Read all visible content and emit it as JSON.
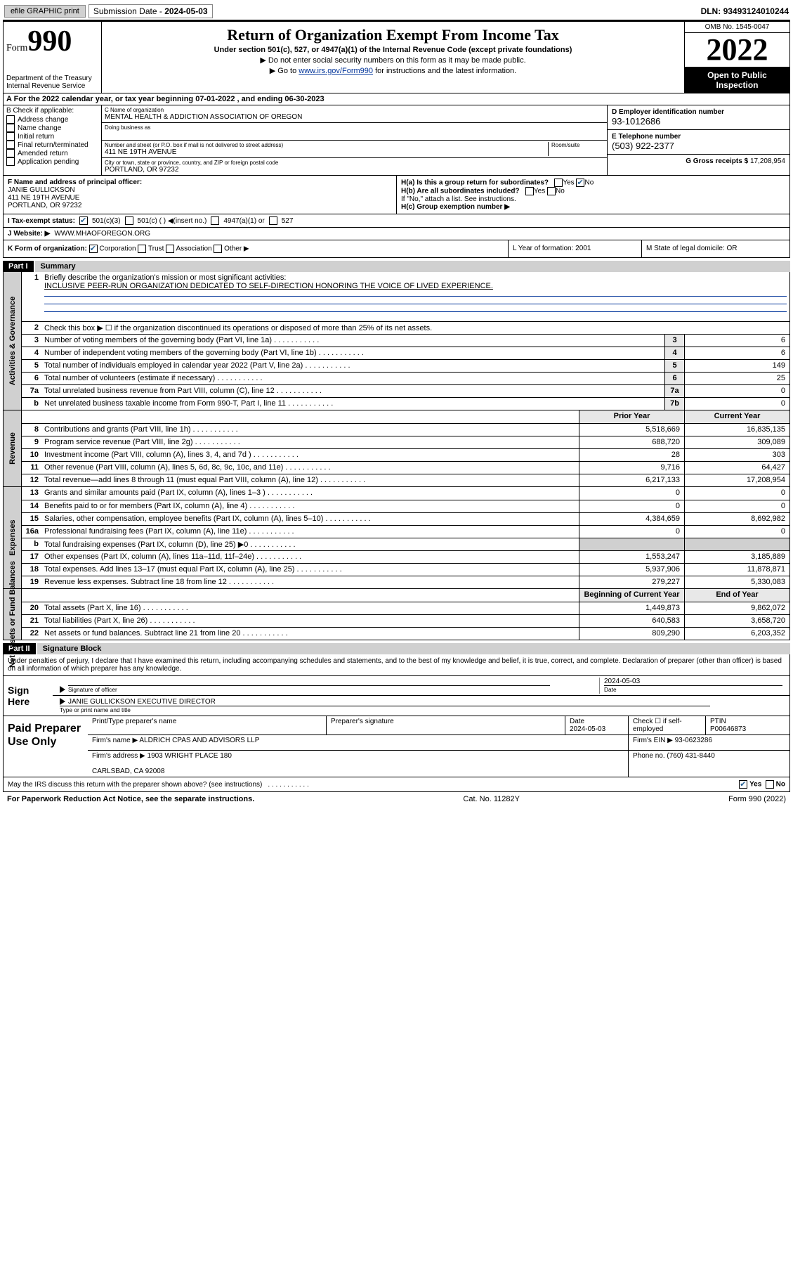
{
  "top": {
    "efile": "efile GRAPHIC print",
    "sub_lbl": "Submission Date - ",
    "sub_date": "2024-05-03",
    "dln_lbl": "DLN: ",
    "dln": "93493124010244"
  },
  "header": {
    "form_label": "Form",
    "form_num": "990",
    "title": "Return of Organization Exempt From Income Tax",
    "sub1": "Under section 501(c), 527, or 4947(a)(1) of the Internal Revenue Code (except private foundations)",
    "sub2": "▶ Do not enter social security numbers on this form as it may be made public.",
    "sub3_pre": "▶ Go to ",
    "sub3_link": "www.irs.gov/Form990",
    "sub3_post": " for instructions and the latest information.",
    "dept": "Department of the Treasury\nInternal Revenue Service",
    "omb": "OMB No. 1545-0047",
    "year": "2022",
    "inspect": "Open to Public Inspection"
  },
  "lineA": "A For the 2022 calendar year, or tax year beginning 07-01-2022    , and ending 06-30-2023",
  "colB": {
    "hdr": "B Check if applicable:",
    "opts": [
      "Address change",
      "Name change",
      "Initial return",
      "Final return/terminated",
      "Amended return",
      "Application pending"
    ]
  },
  "colC": {
    "name_lbl": "C Name of organization",
    "name": "MENTAL HEALTH & ADDICTION ASSOCIATION OF OREGON",
    "dba_lbl": "Doing business as",
    "addr_lbl": "Number and street (or P.O. box if mail is not delivered to street address)",
    "room_lbl": "Room/suite",
    "addr": "411 NE 19TH AVENUE",
    "city_lbl": "City or town, state or province, country, and ZIP or foreign postal code",
    "city": "PORTLAND, OR  97232"
  },
  "colD": {
    "ein_lbl": "D Employer identification number",
    "ein": "93-1012686",
    "tel_lbl": "E Telephone number",
    "tel": "(503) 922-2377",
    "gross_lbl": "G Gross receipts $ ",
    "gross": "17,208,954"
  },
  "rowF": {
    "lbl": "F Name and address of principal officer:",
    "name": "JANIE GULLICKSON",
    "addr1": "411 NE 19TH AVENUE",
    "addr2": "PORTLAND, OR  97232"
  },
  "rowH": {
    "a": "H(a)  Is this a group return for subordinates?",
    "b": "H(b)  Are all subordinates included?",
    "b2": "If \"No,\" attach a list. See instructions.",
    "c": "H(c)  Group exemption number ▶",
    "yes": "Yes",
    "no": "No"
  },
  "rowI": {
    "lbl": "I   Tax-exempt status:",
    "o1": "501(c)(3)",
    "o2": "501(c) (  ) ◀(insert no.)",
    "o3": "4947(a)(1) or",
    "o4": "527"
  },
  "rowJ": {
    "lbl": "J   Website: ▶",
    "val": "WWW.MHAOFOREGON.ORG"
  },
  "rowK": {
    "lbl": "K Form of organization:",
    "o1": "Corporation",
    "o2": "Trust",
    "o3": "Association",
    "o4": "Other ▶",
    "L": "L Year of formation: 2001",
    "M": "M State of legal domicile: OR"
  },
  "part1": {
    "tab": "Part I",
    "title": "Summary"
  },
  "summary": {
    "groups": [
      {
        "label": "Activities & Governance",
        "rows": [
          {
            "n": "1",
            "desc": "Briefly describe the organization's mission or most significant activities:",
            "mission": "INCLUSIVE PEER-RUN ORGANIZATION DEDICATED TO SELF-DIRECTION HONORING THE VOICE OF LIVED EXPERIENCE.",
            "type": "mission"
          },
          {
            "n": "2",
            "desc": "Check this box ▶ ☐ if the organization discontinued its operations or disposed of more than 25% of its net assets.",
            "type": "text"
          },
          {
            "n": "3",
            "desc": "Number of voting members of the governing body (Part VI, line 1a)",
            "b": "3",
            "v": "6",
            "type": "single"
          },
          {
            "n": "4",
            "desc": "Number of independent voting members of the governing body (Part VI, line 1b)",
            "b": "4",
            "v": "6",
            "type": "single"
          },
          {
            "n": "5",
            "desc": "Total number of individuals employed in calendar year 2022 (Part V, line 2a)",
            "b": "5",
            "v": "149",
            "type": "single"
          },
          {
            "n": "6",
            "desc": "Total number of volunteers (estimate if necessary)",
            "b": "6",
            "v": "25",
            "type": "single"
          },
          {
            "n": "7a",
            "desc": "Total unrelated business revenue from Part VIII, column (C), line 12",
            "b": "7a",
            "v": "0",
            "type": "single"
          },
          {
            "n": "b",
            "desc": "Net unrelated business taxable income from Form 990-T, Part I, line 11",
            "b": "7b",
            "v": "0",
            "type": "single"
          }
        ]
      },
      {
        "label": "Revenue",
        "hdr": {
          "p": "Prior Year",
          "c": "Current Year"
        },
        "rows": [
          {
            "n": "8",
            "desc": "Contributions and grants (Part VIII, line 1h)",
            "p": "5,518,669",
            "c": "16,835,135"
          },
          {
            "n": "9",
            "desc": "Program service revenue (Part VIII, line 2g)",
            "p": "688,720",
            "c": "309,089"
          },
          {
            "n": "10",
            "desc": "Investment income (Part VIII, column (A), lines 3, 4, and 7d )",
            "p": "28",
            "c": "303"
          },
          {
            "n": "11",
            "desc": "Other revenue (Part VIII, column (A), lines 5, 6d, 8c, 9c, 10c, and 11e)",
            "p": "9,716",
            "c": "64,427"
          },
          {
            "n": "12",
            "desc": "Total revenue—add lines 8 through 11 (must equal Part VIII, column (A), line 12)",
            "p": "6,217,133",
            "c": "17,208,954"
          }
        ]
      },
      {
        "label": "Expenses",
        "rows": [
          {
            "n": "13",
            "desc": "Grants and similar amounts paid (Part IX, column (A), lines 1–3 )",
            "p": "0",
            "c": "0"
          },
          {
            "n": "14",
            "desc": "Benefits paid to or for members (Part IX, column (A), line 4)",
            "p": "0",
            "c": "0"
          },
          {
            "n": "15",
            "desc": "Salaries, other compensation, employee benefits (Part IX, column (A), lines 5–10)",
            "p": "4,384,659",
            "c": "8,692,982"
          },
          {
            "n": "16a",
            "desc": "Professional fundraising fees (Part IX, column (A), line 11e)",
            "p": "0",
            "c": "0"
          },
          {
            "n": "b",
            "desc": "Total fundraising expenses (Part IX, column (D), line 25) ▶0",
            "p": "",
            "c": "",
            "shade": true
          },
          {
            "n": "17",
            "desc": "Other expenses (Part IX, column (A), lines 11a–11d, 11f–24e)",
            "p": "1,553,247",
            "c": "3,185,889"
          },
          {
            "n": "18",
            "desc": "Total expenses. Add lines 13–17 (must equal Part IX, column (A), line 25)",
            "p": "5,937,906",
            "c": "11,878,871"
          },
          {
            "n": "19",
            "desc": "Revenue less expenses. Subtract line 18 from line 12",
            "p": "279,227",
            "c": "5,330,083"
          }
        ]
      },
      {
        "label": "Net Assets or Fund Balances",
        "hdr": {
          "p": "Beginning of Current Year",
          "c": "End of Year"
        },
        "rows": [
          {
            "n": "20",
            "desc": "Total assets (Part X, line 16)",
            "p": "1,449,873",
            "c": "9,862,072"
          },
          {
            "n": "21",
            "desc": "Total liabilities (Part X, line 26)",
            "p": "640,583",
            "c": "3,658,720"
          },
          {
            "n": "22",
            "desc": "Net assets or fund balances. Subtract line 21 from line 20",
            "p": "809,290",
            "c": "6,203,352"
          }
        ]
      }
    ]
  },
  "part2": {
    "tab": "Part II",
    "title": "Signature Block"
  },
  "sig": {
    "decl": "Under penalties of perjury, I declare that I have examined this return, including accompanying schedules and statements, and to the best of my knowledge and belief, it is true, correct, and complete. Declaration of preparer (other than officer) is based on all information of which preparer has any knowledge.",
    "here": "Sign Here",
    "off_lbl": "Signature of officer",
    "date_lbl": "Date",
    "date": "2024-05-03",
    "name": "JANIE GULLICKSON EXECUTIVE DIRECTOR",
    "name_lbl": "Type or print name and title"
  },
  "prep": {
    "hdr": "Paid Preparer Use Only",
    "r1": {
      "c1": "Print/Type preparer's name",
      "c2": "Preparer's signature",
      "c3": "Date\n2024-05-03",
      "c4": "Check ☐ if self-employed",
      "c5": "PTIN\nP00646873"
    },
    "r2": {
      "c1": "Firm's name    ▶ ALDRICH CPAS AND ADVISORS LLP",
      "c2": "Firm's EIN ▶ 93-0623286"
    },
    "r3": {
      "c1": "Firm's address ▶ 1903 WRIGHT PLACE 180\n\nCARLSBAD, CA  92008",
      "c2": "Phone no. (760) 431-8440"
    }
  },
  "discuss": "May the IRS discuss this return with the preparer shown above? (see instructions)",
  "foot": {
    "l": "For Paperwork Reduction Act Notice, see the separate instructions.",
    "m": "Cat. No. 11282Y",
    "r": "Form 990 (2022)"
  }
}
